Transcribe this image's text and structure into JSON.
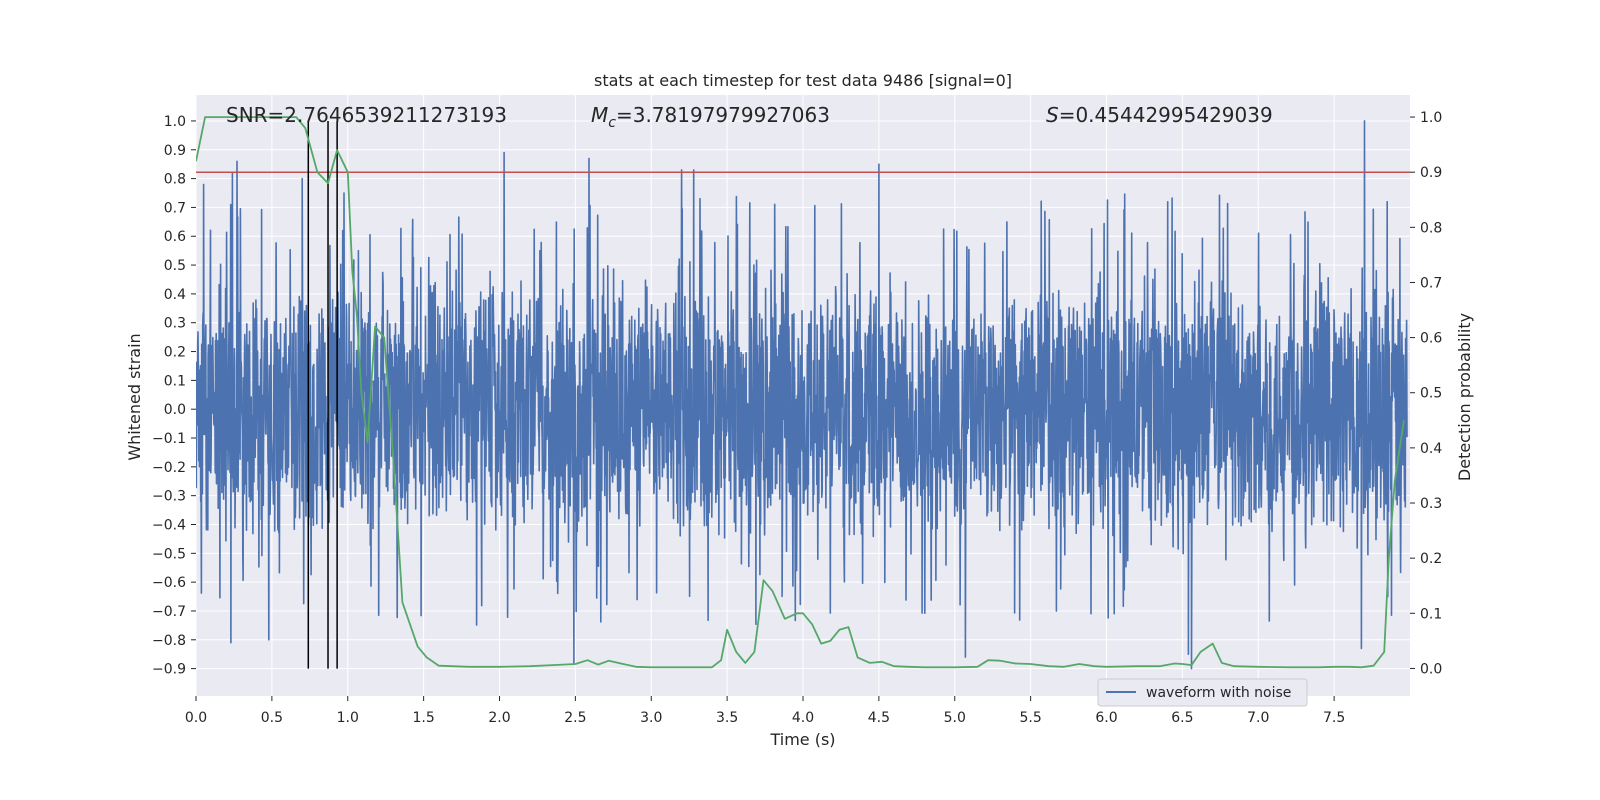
{
  "chart_data": {
    "type": "line",
    "title": "stats at each timestep for test data 9486 [signal=0]",
    "xlabel": "Time (s)",
    "ylabel_left": "Whitened strain",
    "ylabel_right": "Detection probability",
    "xlim": [
      0.0,
      8.0
    ],
    "ylim_left": [
      -0.995,
      1.09
    ],
    "ylim_right": [
      -0.05,
      1.04
    ],
    "x_ticks": [
      0.0,
      0.5,
      1.0,
      1.5,
      2.0,
      2.5,
      3.0,
      3.5,
      4.0,
      4.5,
      5.0,
      5.5,
      6.0,
      6.5,
      7.0,
      7.5
    ],
    "x_tick_labels": [
      "0.0",
      "0.5",
      "1.0",
      "1.5",
      "2.0",
      "2.5",
      "3.0",
      "3.5",
      "4.0",
      "4.5",
      "5.0",
      "5.5",
      "6.0",
      "6.5",
      "7.0",
      "7.5"
    ],
    "y_left_ticks": [
      -0.9,
      -0.8,
      -0.7,
      -0.6,
      -0.5,
      -0.4,
      -0.3,
      -0.2,
      -0.1,
      0.0,
      0.1,
      0.2,
      0.3,
      0.4,
      0.5,
      0.6,
      0.7,
      0.8,
      0.9,
      1.0
    ],
    "y_left_tick_labels": [
      "−0.9",
      "−0.8",
      "−0.7",
      "−0.6",
      "−0.5",
      "−0.4",
      "−0.3",
      "−0.2",
      "−0.1",
      "0.0",
      "0.1",
      "0.2",
      "0.3",
      "0.4",
      "0.5",
      "0.6",
      "0.7",
      "0.8",
      "0.9",
      "1.0"
    ],
    "y_right_ticks": [
      0.0,
      0.1,
      0.2,
      0.3,
      0.4,
      0.5,
      0.6,
      0.7,
      0.8,
      0.9,
      1.0
    ],
    "y_right_tick_labels": [
      "0.0",
      "0.1",
      "0.2",
      "0.3",
      "0.4",
      "0.5",
      "0.6",
      "0.7",
      "0.8",
      "0.9",
      "1.0"
    ],
    "annotations": {
      "snr": "SNR=2.7646539211273193",
      "mc_symbol": "M",
      "mc_sub": "c",
      "mc_value": "=3.78197979927063",
      "s_symbol": "S",
      "s_value": "=0.45442995429039"
    },
    "threshold": {
      "axis": "right",
      "value": 0.9,
      "color": "#c44e52"
    },
    "vertical_markers": [
      0.74,
      0.87,
      0.93
    ],
    "legend": {
      "entries": [
        "waveform with noise"
      ],
      "placement": "lower-right"
    },
    "colors": {
      "background": "#eaeaf2",
      "grid": "#ffffff",
      "waveform": "#4c72b0",
      "probability": "#55a868",
      "marker": "#000000"
    },
    "series": [
      {
        "name": "waveform with noise",
        "axis": "left",
        "kind": "noise-waveform",
        "approx_envelope": [
          -0.35,
          0.35
        ],
        "approx_peaks": [
          [
            0.05,
            0.78
          ],
          [
            0.24,
            0.82
          ],
          [
            0.27,
            0.86
          ],
          [
            0.7,
            0.8
          ],
          [
            1.07,
            0.55
          ],
          [
            2.03,
            0.89
          ],
          [
            2.59,
            0.87
          ],
          [
            3.2,
            0.83
          ],
          [
            3.28,
            0.83
          ],
          [
            4.5,
            0.85
          ],
          [
            7.7,
            1.0
          ],
          [
            7.85,
            0.72
          ],
          [
            0.23,
            -0.81
          ],
          [
            0.48,
            -0.8
          ],
          [
            2.49,
            -0.88
          ],
          [
            5.07,
            -0.86
          ],
          [
            6.54,
            -0.85
          ],
          [
            6.56,
            -0.9
          ],
          [
            7.68,
            -0.83
          ]
        ]
      },
      {
        "name": "detection probability",
        "axis": "right",
        "x": [
          0.0,
          0.06,
          0.12,
          0.2,
          0.3,
          0.4,
          0.5,
          0.6,
          0.66,
          0.72,
          0.8,
          0.87,
          0.93,
          1.0,
          1.03,
          1.06,
          1.09,
          1.13,
          1.18,
          1.24,
          1.3,
          1.36,
          1.41,
          1.46,
          1.52,
          1.6,
          1.8,
          2.0,
          2.2,
          2.35,
          2.5,
          2.58,
          2.65,
          2.72,
          2.8,
          2.9,
          3.0,
          3.2,
          3.4,
          3.46,
          3.5,
          3.56,
          3.62,
          3.68,
          3.74,
          3.8,
          3.88,
          3.96,
          4.0,
          4.06,
          4.12,
          4.18,
          4.24,
          4.3,
          4.36,
          4.44,
          4.52,
          4.6,
          4.7,
          4.8,
          5.0,
          5.15,
          5.22,
          5.3,
          5.4,
          5.5,
          5.62,
          5.72,
          5.82,
          5.92,
          6.0,
          6.2,
          6.35,
          6.45,
          6.5,
          6.56,
          6.62,
          6.7,
          6.76,
          6.84,
          7.0,
          7.2,
          7.4,
          7.5,
          7.6,
          7.68,
          7.76,
          7.83,
          7.86,
          7.9,
          7.96
        ],
        "values": [
          0.92,
          1.0,
          1.0,
          1.0,
          1.0,
          1.0,
          1.0,
          1.0,
          1.0,
          0.98,
          0.9,
          0.88,
          0.94,
          0.9,
          0.72,
          0.64,
          0.5,
          0.41,
          0.62,
          0.6,
          0.38,
          0.12,
          0.08,
          0.04,
          0.02,
          0.005,
          0.003,
          0.003,
          0.004,
          0.006,
          0.008,
          0.015,
          0.007,
          0.014,
          0.009,
          0.003,
          0.002,
          0.002,
          0.002,
          0.015,
          0.07,
          0.03,
          0.01,
          0.03,
          0.16,
          0.14,
          0.09,
          0.1,
          0.1,
          0.08,
          0.045,
          0.05,
          0.07,
          0.075,
          0.02,
          0.01,
          0.012,
          0.004,
          0.003,
          0.002,
          0.002,
          0.003,
          0.015,
          0.014,
          0.009,
          0.008,
          0.004,
          0.003,
          0.008,
          0.004,
          0.003,
          0.004,
          0.004,
          0.009,
          0.008,
          0.006,
          0.03,
          0.045,
          0.01,
          0.004,
          0.003,
          0.002,
          0.002,
          0.003,
          0.003,
          0.002,
          0.005,
          0.03,
          0.2,
          0.34,
          0.45
        ]
      }
    ]
  }
}
